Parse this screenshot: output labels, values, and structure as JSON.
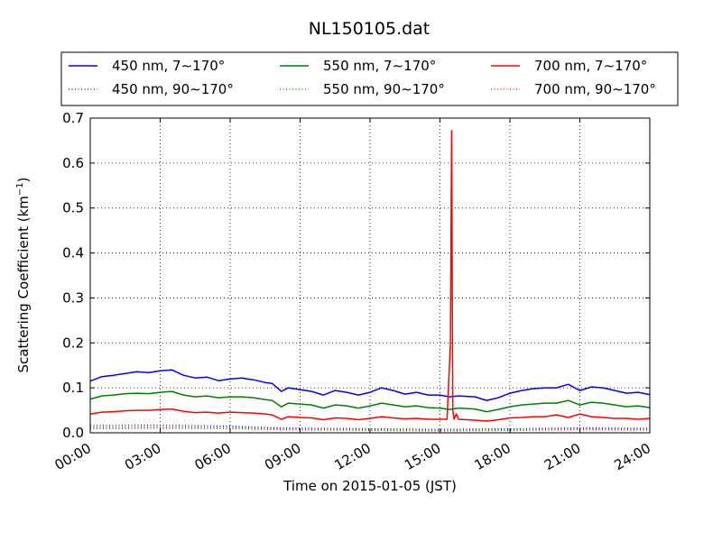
{
  "chart_data": {
    "type": "line",
    "title": "NL150105.dat",
    "xlabel": "Time on 2015-01-05 (JST)",
    "ylabel_main": "Scattering Coefficient (km",
    "ylabel_sup": "−1",
    "ylabel_tail": ")",
    "xlim": [
      0,
      24
    ],
    "ylim": [
      0,
      0.7
    ],
    "grid": true,
    "legend_position": "top",
    "xticks": [
      {
        "value": 0,
        "label": "00:00"
      },
      {
        "value": 3,
        "label": "03:00"
      },
      {
        "value": 6,
        "label": "06:00"
      },
      {
        "value": 9,
        "label": "09:00"
      },
      {
        "value": 12,
        "label": "12:00"
      },
      {
        "value": 15,
        "label": "15:00"
      },
      {
        "value": 18,
        "label": "18:00"
      },
      {
        "value": 21,
        "label": "21:00"
      },
      {
        "value": 24,
        "label": "24:00"
      }
    ],
    "yticks": [
      {
        "value": 0.0,
        "label": "0.0"
      },
      {
        "value": 0.1,
        "label": "0.1"
      },
      {
        "value": 0.2,
        "label": "0.2"
      },
      {
        "value": 0.3,
        "label": "0.3"
      },
      {
        "value": 0.4,
        "label": "0.4"
      },
      {
        "value": 0.5,
        "label": "0.5"
      },
      {
        "value": 0.6,
        "label": "0.6"
      },
      {
        "value": 0.7,
        "label": "0.7"
      }
    ],
    "series": [
      {
        "name": "450 nm, 7∼170°",
        "color": "#0000ff",
        "style": "solid",
        "x": [
          0,
          0.5,
          1,
          1.5,
          2,
          2.5,
          3,
          3.5,
          4,
          4.5,
          5,
          5.5,
          6,
          6.5,
          7,
          7.5,
          7.8,
          8.2,
          8.5,
          9,
          9.5,
          10,
          10.5,
          11,
          11.5,
          12,
          12.5,
          13,
          13.5,
          14,
          14.5,
          15,
          15.4,
          15.8,
          16.5,
          17,
          17.5,
          18,
          18.5,
          19,
          19.5,
          20,
          20.5,
          21,
          21.5,
          22,
          22.5,
          23,
          23.5,
          24
        ],
        "y": [
          0.115,
          0.125,
          0.128,
          0.132,
          0.136,
          0.134,
          0.138,
          0.14,
          0.128,
          0.122,
          0.124,
          0.116,
          0.12,
          0.122,
          0.118,
          0.112,
          0.11,
          0.092,
          0.1,
          0.096,
          0.092,
          0.084,
          0.094,
          0.09,
          0.084,
          0.09,
          0.1,
          0.094,
          0.086,
          0.09,
          0.084,
          0.084,
          0.08,
          0.082,
          0.08,
          0.072,
          0.078,
          0.088,
          0.094,
          0.098,
          0.1,
          0.1,
          0.108,
          0.094,
          0.102,
          0.1,
          0.094,
          0.088,
          0.09,
          0.085
        ]
      },
      {
        "name": "450 nm, 90∼170°",
        "color": "#0000ff",
        "style": "dotted",
        "x": [
          0,
          3,
          6,
          8,
          12,
          15,
          18,
          21,
          24
        ],
        "y": [
          0.016,
          0.017,
          0.015,
          0.011,
          0.009,
          0.008,
          0.009,
          0.011,
          0.01
        ]
      },
      {
        "name": "550 nm, 7∼170°",
        "color": "#008000",
        "style": "solid",
        "x": [
          0,
          0.5,
          1,
          1.5,
          2,
          2.5,
          3,
          3.5,
          4,
          4.5,
          5,
          5.5,
          6,
          6.5,
          7,
          7.5,
          7.8,
          8.2,
          8.5,
          9,
          9.5,
          10,
          10.5,
          11,
          11.5,
          12,
          12.5,
          13,
          13.5,
          14,
          14.5,
          15,
          15.4,
          15.8,
          16.5,
          17,
          17.5,
          18,
          18.5,
          19,
          19.5,
          20,
          20.5,
          21,
          21.5,
          22,
          22.5,
          23,
          23.5,
          24
        ],
        "y": [
          0.075,
          0.082,
          0.084,
          0.087,
          0.088,
          0.087,
          0.09,
          0.092,
          0.084,
          0.08,
          0.082,
          0.078,
          0.08,
          0.08,
          0.078,
          0.074,
          0.072,
          0.058,
          0.066,
          0.064,
          0.062,
          0.055,
          0.062,
          0.06,
          0.055,
          0.06,
          0.066,
          0.062,
          0.058,
          0.06,
          0.056,
          0.055,
          0.052,
          0.055,
          0.053,
          0.047,
          0.052,
          0.058,
          0.062,
          0.064,
          0.066,
          0.066,
          0.072,
          0.062,
          0.068,
          0.066,
          0.062,
          0.058,
          0.06,
          0.056
        ]
      },
      {
        "name": "550 nm, 90∼170°",
        "color": "#008000",
        "style": "dotted",
        "x": [
          0,
          3,
          6,
          8,
          12,
          15,
          18,
          21,
          24
        ],
        "y": [
          0.012,
          0.013,
          0.012,
          0.009,
          0.007,
          0.006,
          0.007,
          0.009,
          0.008
        ]
      },
      {
        "name": "700 nm, 7∼170°",
        "color": "#ff0000",
        "style": "solid",
        "x": [
          0,
          0.5,
          1,
          1.5,
          2,
          2.5,
          3,
          3.5,
          4,
          4.5,
          5,
          5.5,
          6,
          6.5,
          7,
          7.5,
          7.8,
          8.2,
          8.5,
          9,
          9.5,
          10,
          10.5,
          11,
          11.5,
          12,
          12.5,
          13,
          13.5,
          14,
          14.5,
          15,
          15.3,
          15.45,
          15.5,
          15.55,
          15.6,
          15.7,
          15.8,
          16.5,
          17,
          17.5,
          18,
          18.5,
          19,
          19.5,
          20,
          20.5,
          21,
          21.5,
          22,
          22.5,
          23,
          23.5,
          24
        ],
        "y": [
          0.042,
          0.046,
          0.047,
          0.049,
          0.05,
          0.05,
          0.052,
          0.053,
          0.048,
          0.045,
          0.046,
          0.044,
          0.046,
          0.045,
          0.044,
          0.042,
          0.04,
          0.03,
          0.036,
          0.034,
          0.033,
          0.029,
          0.033,
          0.032,
          0.029,
          0.032,
          0.036,
          0.033,
          0.031,
          0.032,
          0.03,
          0.03,
          0.03,
          0.2,
          0.672,
          0.05,
          0.03,
          0.042,
          0.03,
          0.028,
          0.026,
          0.029,
          0.033,
          0.034,
          0.036,
          0.036,
          0.04,
          0.034,
          0.042,
          0.036,
          0.034,
          0.032,
          0.032,
          0.03,
          0.032
        ]
      },
      {
        "name": "700 nm, 90∼170°",
        "color": "#ff0000",
        "style": "dotted",
        "x": [
          0,
          3,
          6,
          8,
          12,
          15,
          18,
          21,
          24
        ],
        "y": [
          0.009,
          0.01,
          0.009,
          0.007,
          0.005,
          0.004,
          0.005,
          0.007,
          0.006
        ]
      }
    ]
  }
}
